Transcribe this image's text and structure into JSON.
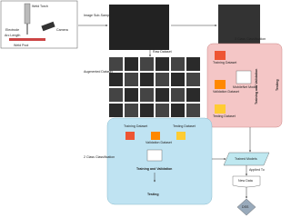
{
  "setup": {
    "torch": "Weld Torch",
    "camera": "Camera",
    "electrode": "Electrode",
    "arc_length": "Arc Length",
    "pool": "Weld Pool"
  },
  "steps": {
    "sub_sampling": "Image Sub-Sampling",
    "raw": "Raw Dataset",
    "augmented": "Augmented Dataset"
  },
  "three_class": {
    "title": "3 Class Classification",
    "training": "Training Dataset",
    "validation": "Validation Dataset",
    "testing_data": "Testing Dataset",
    "model": "MobileNet Model",
    "train_val": "Training and Validation",
    "testing": "Testing"
  },
  "two_class": {
    "title": "2 Class Classification",
    "training": "Training Dataset",
    "validation": "Validation Dataset",
    "testing_data": "Testing Dataset",
    "train_val": "Training and Validation",
    "testing": "Testing"
  },
  "output": {
    "trained": "Trained Models",
    "applied": "Applied To",
    "new_data": "New Data",
    "dss": "DSS"
  }
}
